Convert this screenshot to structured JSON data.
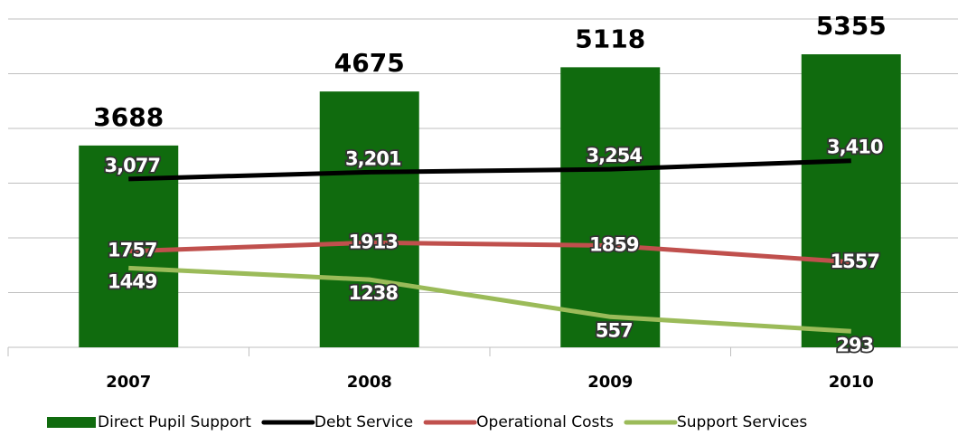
{
  "chart_data": {
    "type": "bar-line",
    "categories": [
      "2007",
      "2008",
      "2009",
      "2010"
    ],
    "ylim": [
      0,
      6000
    ],
    "yticks": [
      0,
      1000,
      2000,
      3000,
      4000,
      5000,
      6000
    ],
    "grid": true,
    "legend": "bottom",
    "series": [
      {
        "name": "Direct Pupil Support",
        "type": "bar",
        "color": "#106b0e",
        "values": [
          3688,
          4675,
          5118,
          5355
        ]
      },
      {
        "name": "Debt Service",
        "type": "line",
        "color": "#000000",
        "values": [
          3077,
          3201,
          3254,
          3410
        ],
        "value_labels": [
          "3,077",
          "3,201",
          "3,254",
          "3,410"
        ]
      },
      {
        "name": "Operational Costs",
        "type": "line",
        "color": "#c0504d",
        "values": [
          1757,
          1913,
          1859,
          1557
        ]
      },
      {
        "name": "Support Services",
        "type": "line",
        "color": "#9bbb59",
        "values": [
          1449,
          1238,
          557,
          293
        ]
      }
    ]
  }
}
